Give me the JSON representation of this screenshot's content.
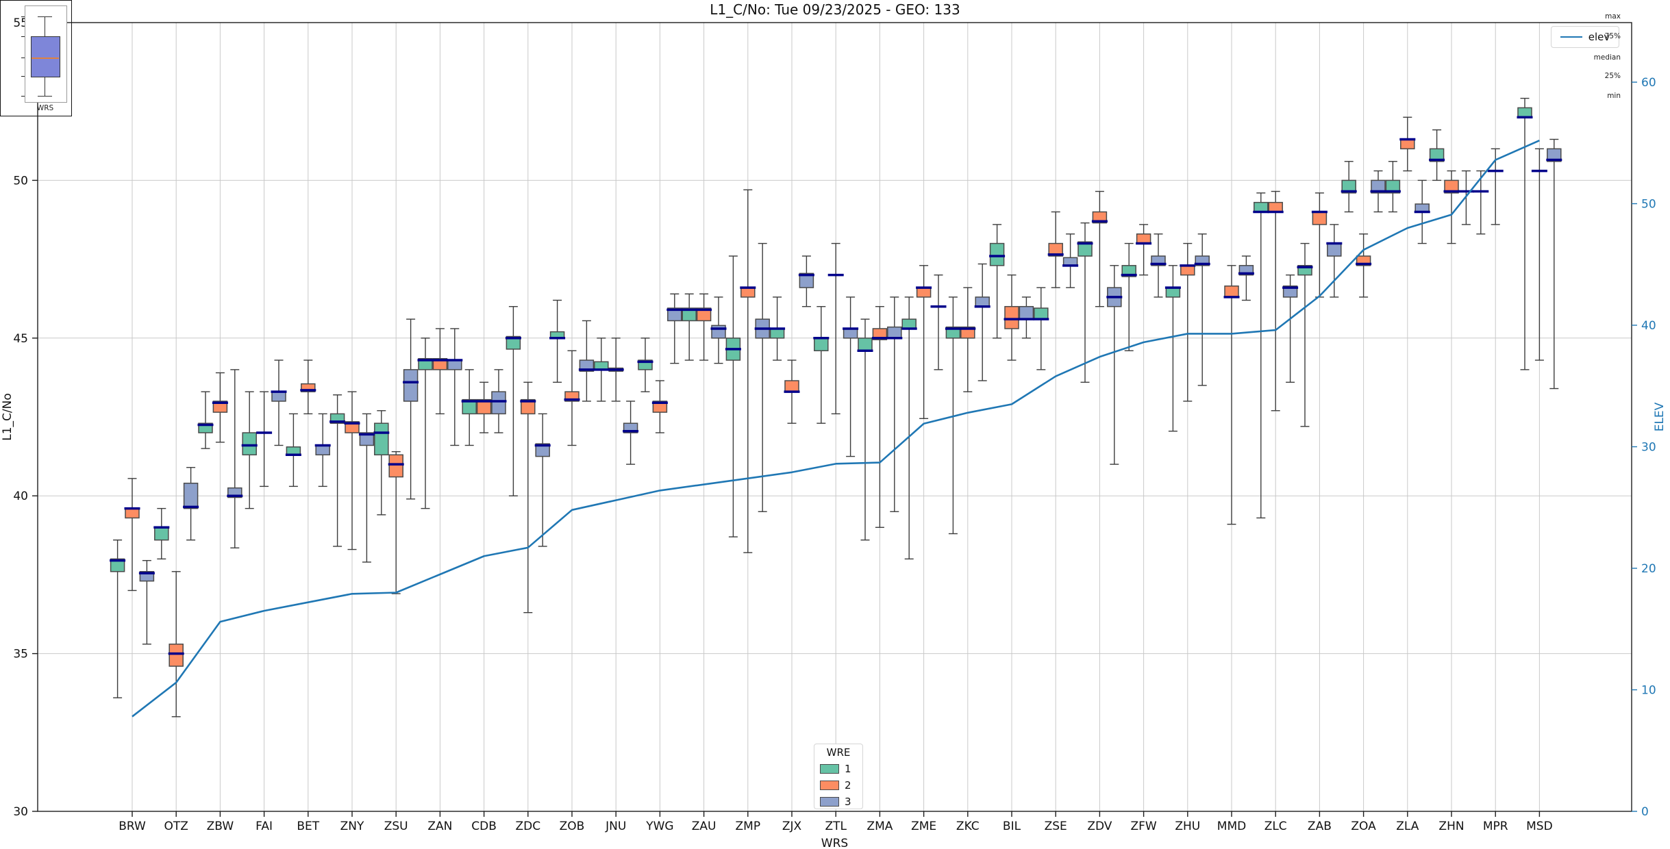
{
  "title": "L1_C/No: Tue 09/23/2025 - GEO: 133",
  "colors": {
    "wre1": "#66c2a5",
    "wre2": "#fc8d62",
    "wre3": "#8da0cb",
    "median": "#00008b",
    "elev_line": "#1f77b4",
    "right_axis_text": "#1f77b4",
    "grid": "#c9c9c9",
    "spine": "#1c1c1c",
    "whisker": "#3c3c3c",
    "box_edge": "#4a4a4a",
    "inset_box_fill": "#7e86d9",
    "inset_median": "#e0823e"
  },
  "legend_elev": {
    "label": "elev"
  },
  "legend_wre": {
    "title": "WRE",
    "entries": [
      {
        "label": "1"
      },
      {
        "label": "2"
      },
      {
        "label": "3"
      }
    ]
  },
  "inset": {
    "labels": [
      "max",
      "75%",
      "median",
      "25%",
      "min"
    ],
    "xlabel": "WRS"
  },
  "chart_data": {
    "type": "boxplot+line",
    "title": "L1_C/No: Tue 09/23/2025 - GEO: 133",
    "xlabel": "WRS",
    "ylabel_left": "L1_C/No",
    "ylabel_right": "ELEV",
    "ylim_left": [
      30,
      55
    ],
    "ylim_right": [
      0,
      60
    ],
    "yticks_left": [
      55,
      50,
      45,
      40,
      35,
      30
    ],
    "yticks_right": [
      60,
      50,
      40,
      30,
      20,
      10,
      0
    ],
    "grid_y": [
      50,
      45,
      40,
      35
    ],
    "legend_position": {
      "elev": "upper right",
      "wre": "lower center"
    },
    "categories": [
      "BRW",
      "OTZ",
      "ZBW",
      "FAI",
      "BET",
      "ZNY",
      "ZSU",
      "ZAN",
      "CDB",
      "ZDC",
      "ZOB",
      "JNU",
      "YWG",
      "ZAU",
      "ZMP",
      "ZJX",
      "ZTL",
      "ZMA",
      "ZME",
      "ZKC",
      "BIL",
      "ZSE",
      "ZDV",
      "ZFW",
      "ZHU",
      "MMD",
      "ZLC",
      "ZAB",
      "ZOA",
      "ZLA",
      "ZHN",
      "MPR",
      "MSD"
    ],
    "box_value_order": [
      "whisker_low",
      "q1",
      "median",
      "q3",
      "whisker_high"
    ],
    "series": [
      {
        "wre": "1",
        "color_key": "wre1",
        "boxes": [
          [
            33.6,
            37.6,
            37.95,
            38.0,
            38.6
          ],
          [
            38.0,
            38.6,
            39.0,
            39.0,
            39.6
          ],
          [
            41.5,
            42.0,
            42.25,
            42.3,
            43.3
          ],
          [
            39.6,
            41.3,
            41.6,
            42.0,
            43.3
          ],
          [
            40.3,
            41.3,
            41.3,
            41.55,
            42.6
          ],
          [
            38.4,
            42.3,
            42.35,
            42.6,
            43.2
          ],
          [
            39.4,
            41.3,
            42.0,
            42.3,
            42.7
          ],
          [
            39.6,
            44.0,
            44.3,
            44.35,
            45.0
          ],
          [
            41.6,
            42.6,
            43.0,
            43.05,
            44.0
          ],
          [
            40.0,
            44.65,
            45.0,
            45.05,
            46.0
          ],
          [
            43.6,
            45.0,
            45.0,
            45.2,
            46.2
          ],
          [
            43.0,
            44.0,
            44.0,
            44.25,
            45.0
          ],
          [
            43.3,
            44.0,
            44.25,
            44.3,
            45.0
          ],
          [
            44.3,
            45.55,
            45.9,
            45.95,
            46.4
          ],
          [
            38.7,
            44.3,
            44.65,
            45.0,
            47.6
          ],
          [
            44.3,
            45.0,
            45.3,
            45.3,
            46.3
          ],
          [
            42.3,
            44.6,
            45.0,
            45.0,
            46.0
          ],
          [
            38.6,
            44.6,
            44.6,
            45.0,
            45.6
          ],
          [
            38.0,
            45.3,
            45.3,
            45.6,
            46.3
          ],
          [
            38.8,
            45.0,
            45.3,
            45.35,
            46.3
          ],
          [
            45.0,
            47.3,
            47.6,
            48.0,
            48.6
          ],
          [
            44.0,
            45.6,
            45.6,
            45.95,
            46.6
          ],
          [
            43.6,
            47.6,
            48.0,
            48.05,
            48.65
          ],
          [
            44.6,
            46.95,
            47.0,
            47.3,
            48.0
          ],
          [
            42.05,
            46.3,
            46.6,
            46.6,
            47.3
          ],
          null,
          [
            39.3,
            49.0,
            49.0,
            49.3,
            49.6
          ],
          [
            42.2,
            47.0,
            47.25,
            47.3,
            48.0
          ],
          [
            49.0,
            49.6,
            49.65,
            50.0,
            50.6
          ],
          [
            49.0,
            49.6,
            49.65,
            50.0,
            50.6
          ],
          [
            50.0,
            50.6,
            50.65,
            51.0,
            51.6
          ],
          [
            48.3,
            49.65,
            49.65,
            49.65,
            50.3
          ],
          [
            44.0,
            52.0,
            52.0,
            52.3,
            52.6
          ]
        ]
      },
      {
        "wre": "2",
        "color_key": "wre2",
        "boxes": [
          [
            37.0,
            39.3,
            39.6,
            39.6,
            40.55
          ],
          [
            33.0,
            34.6,
            35.0,
            35.3,
            37.6
          ],
          [
            41.7,
            42.65,
            42.95,
            43.0,
            43.9
          ],
          [
            40.3,
            42.0,
            42.0,
            42.0,
            43.3
          ],
          [
            42.6,
            43.3,
            43.35,
            43.55,
            44.3
          ],
          [
            38.3,
            42.0,
            42.3,
            42.35,
            43.3
          ],
          [
            36.9,
            40.6,
            41.0,
            41.3,
            41.4
          ],
          [
            42.6,
            44.0,
            44.3,
            44.35,
            45.3
          ],
          [
            42.0,
            42.6,
            43.0,
            43.05,
            43.6
          ],
          [
            36.3,
            42.6,
            43.0,
            43.05,
            43.6
          ],
          [
            41.6,
            43.0,
            43.05,
            43.3,
            44.6
          ],
          [
            43.0,
            43.95,
            44.0,
            44.05,
            45.0
          ],
          [
            42.0,
            42.65,
            42.95,
            43.0,
            43.65
          ],
          [
            44.3,
            45.55,
            45.9,
            45.95,
            46.4
          ],
          [
            38.2,
            46.3,
            46.6,
            46.6,
            49.7
          ],
          [
            42.3,
            43.3,
            43.3,
            43.65,
            44.3
          ],
          [
            42.6,
            47.0,
            47.0,
            47.0,
            48.0
          ],
          [
            39.0,
            44.95,
            45.0,
            45.3,
            46.0
          ],
          [
            42.45,
            46.3,
            46.6,
            46.6,
            47.3
          ],
          [
            43.3,
            45.0,
            45.3,
            45.35,
            46.6
          ],
          [
            44.3,
            45.3,
            45.6,
            46.0,
            47.0
          ],
          [
            46.6,
            47.6,
            47.65,
            48.0,
            49.0
          ],
          [
            46.0,
            48.65,
            48.7,
            49.0,
            49.65
          ],
          [
            47.0,
            48.0,
            48.0,
            48.3,
            48.6
          ],
          [
            43.0,
            47.0,
            47.3,
            47.3,
            48.0
          ],
          [
            39.1,
            46.3,
            46.3,
            46.65,
            47.3
          ],
          [
            42.7,
            49.0,
            49.0,
            49.3,
            49.65
          ],
          [
            46.3,
            48.6,
            49.0,
            49.0,
            49.6
          ],
          [
            46.3,
            47.3,
            47.35,
            47.6,
            48.3
          ],
          [
            50.3,
            51.0,
            51.3,
            51.3,
            52.0
          ],
          [
            48.0,
            49.6,
            49.65,
            50.0,
            50.3
          ],
          [
            48.6,
            50.3,
            50.3,
            50.3,
            51.0
          ],
          [
            44.3,
            50.3,
            50.3,
            50.3,
            51.0
          ]
        ]
      },
      {
        "wre": "3",
        "color_key": "wre3",
        "boxes": [
          [
            35.3,
            37.3,
            37.55,
            37.6,
            37.95
          ],
          [
            38.6,
            39.6,
            39.65,
            40.4,
            40.9
          ],
          [
            38.35,
            39.95,
            40.0,
            40.25,
            44.0
          ],
          [
            41.6,
            43.0,
            43.3,
            43.3,
            44.3
          ],
          [
            40.3,
            41.3,
            41.6,
            41.6,
            42.6
          ],
          [
            37.9,
            41.6,
            41.95,
            42.0,
            42.6
          ],
          [
            39.9,
            43.0,
            43.6,
            44.0,
            45.6
          ],
          [
            41.6,
            44.0,
            44.3,
            44.3,
            45.3
          ],
          [
            42.0,
            42.6,
            43.0,
            43.3,
            44.0
          ],
          [
            38.4,
            41.25,
            41.6,
            41.65,
            42.6
          ],
          [
            43.0,
            43.95,
            44.0,
            44.3,
            45.55
          ],
          [
            41.0,
            42.0,
            42.05,
            42.3,
            43.0
          ],
          [
            44.2,
            45.55,
            45.9,
            45.95,
            46.4
          ],
          [
            44.2,
            45.0,
            45.3,
            45.4,
            46.3
          ],
          [
            39.5,
            45.0,
            45.3,
            45.6,
            48.0
          ],
          [
            46.0,
            46.6,
            47.0,
            47.05,
            47.6
          ],
          [
            41.25,
            45.0,
            45.3,
            45.3,
            46.3
          ],
          [
            39.5,
            45.0,
            45.0,
            45.35,
            46.3
          ],
          [
            44.0,
            46.0,
            46.0,
            46.0,
            47.0
          ],
          [
            43.65,
            46.0,
            46.0,
            46.3,
            47.35
          ],
          [
            45.0,
            45.6,
            45.6,
            46.0,
            46.3
          ],
          [
            46.6,
            47.3,
            47.3,
            47.55,
            48.3
          ],
          [
            41.0,
            46.0,
            46.3,
            46.6,
            47.3
          ],
          [
            46.3,
            47.3,
            47.35,
            47.6,
            48.3
          ],
          [
            43.5,
            47.3,
            47.35,
            47.6,
            48.3
          ],
          [
            46.2,
            47.0,
            47.05,
            47.3,
            47.6
          ],
          [
            43.6,
            46.3,
            46.6,
            46.65,
            47.0
          ],
          [
            46.3,
            47.6,
            48.0,
            48.0,
            48.6
          ],
          [
            49.0,
            49.6,
            49.65,
            50.0,
            50.3
          ],
          [
            48.0,
            49.0,
            49.0,
            49.25,
            50.0
          ],
          [
            48.6,
            49.65,
            49.65,
            49.65,
            50.3
          ],
          null,
          [
            43.4,
            50.6,
            50.65,
            51.0,
            51.3
          ]
        ]
      }
    ],
    "elev_series": {
      "name": "elev",
      "values": [
        7.8,
        10.6,
        15.6,
        16.5,
        17.2,
        17.9,
        18.0,
        19.5,
        21.0,
        21.7,
        24.8,
        25.6,
        26.4,
        26.9,
        27.4,
        27.9,
        28.6,
        28.7,
        31.9,
        32.8,
        33.5,
        35.8,
        37.4,
        38.6,
        39.3,
        39.3,
        39.6,
        42.4,
        46.2,
        48.0,
        49.1,
        53.6,
        55.2
      ]
    }
  }
}
